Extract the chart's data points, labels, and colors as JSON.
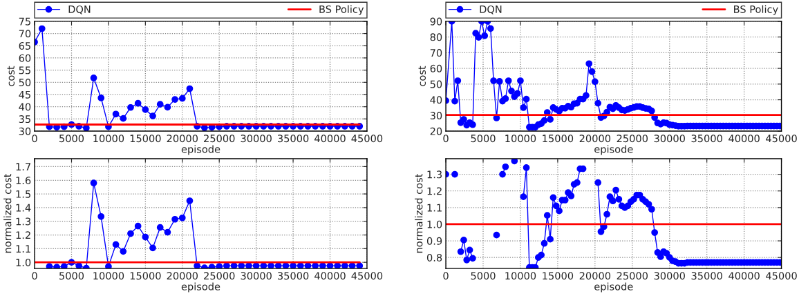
{
  "chart_data": [
    {
      "type": "line",
      "xlabel": "episode",
      "ylabel": "cost",
      "xlim": [
        0,
        45000
      ],
      "xticks": [
        0,
        5000,
        10000,
        15000,
        20000,
        25000,
        30000,
        35000,
        40000,
        45000
      ],
      "ylim": [
        30,
        75
      ],
      "yticks": [
        30,
        35,
        40,
        45,
        50,
        55,
        60,
        65,
        70,
        75
      ],
      "grid": true,
      "legend": "top",
      "series": [
        {
          "name": "DQN",
          "color": "#0000ff",
          "marker": "circle",
          "line_style": "solid",
          "x": [
            0,
            1000,
            2000,
            3000,
            4000,
            5000,
            6000,
            7000,
            8000,
            9000,
            10000,
            11000,
            12000,
            13000,
            14000,
            15000,
            16000,
            17000,
            18000,
            19000,
            20000,
            21000,
            22000,
            23000,
            24000,
            25000,
            26000,
            27000,
            28000,
            29000,
            30000,
            31000,
            32000,
            33000,
            34000,
            35000,
            36000,
            37000,
            38000,
            39000,
            40000,
            41000,
            42000,
            43000,
            44000
          ],
          "values": [
            66.5,
            72.0,
            31.8,
            31.6,
            31.8,
            32.7,
            32.0,
            31.3,
            51.8,
            43.6,
            31.8,
            37.0,
            35.2,
            39.7,
            41.4,
            38.8,
            36.2,
            41.0,
            39.8,
            43.0,
            43.4,
            47.4,
            32.0,
            31.4,
            31.6,
            31.8,
            32.0,
            32.0,
            32.0,
            32.0,
            32.0,
            32.0,
            32.0,
            32.0,
            32.0,
            32.0,
            32.0,
            32.0,
            32.0,
            32.0,
            32.0,
            32.0,
            32.0,
            32.0,
            32.0
          ]
        },
        {
          "name": "BS Policy",
          "color": "#ff0000",
          "marker": "none",
          "line_style": "solid",
          "x": [
            0,
            44000
          ],
          "values": [
            32.7,
            32.7
          ]
        }
      ]
    },
    {
      "type": "line",
      "xlabel": "episode",
      "ylabel": "cost",
      "xlim": [
        0,
        45000
      ],
      "xticks": [
        0,
        5000,
        10000,
        15000,
        20000,
        25000,
        30000,
        35000,
        40000,
        45000
      ],
      "ylim": [
        20,
        90
      ],
      "yticks": [
        20,
        30,
        40,
        50,
        60,
        70,
        80,
        90
      ],
      "grid": true,
      "legend": "top",
      "series": [
        {
          "name": "DQN",
          "color": "#0000ff",
          "marker": "circle",
          "line_style": "solid",
          "x": [
            0,
            800,
            1200,
            1600,
            2000,
            2400,
            2800,
            3200,
            3600,
            4000,
            4400,
            4800,
            5200,
            5600,
            6000,
            6400,
            6800,
            7200,
            7600,
            8000,
            8400,
            8800,
            9200,
            9600,
            10000,
            10400,
            10800,
            11200,
            11600,
            12000,
            12400,
            12800,
            13200,
            13600,
            14000,
            14400,
            14800,
            15200,
            15600,
            16000,
            16400,
            16800,
            17200,
            17600,
            18000,
            18400,
            18800,
            19200,
            19600,
            20000,
            20400,
            20800,
            21200,
            21600,
            22000,
            22400,
            22800,
            23200,
            23600,
            24000,
            24400,
            24800,
            25200,
            25600,
            26000,
            26400,
            26800,
            27200,
            27600,
            28000,
            28400,
            28800,
            29200,
            29600,
            30000,
            30400,
            30800,
            31200,
            31600,
            32000,
            32400,
            32800,
            33200,
            33600,
            34000,
            34400,
            34800,
            35200,
            35600,
            36000,
            36400,
            36800,
            37200,
            37600,
            38000,
            38400,
            38800,
            39200,
            39600,
            40000,
            40400,
            40800,
            41200,
            41600,
            42000,
            42400,
            42800,
            43200,
            43600,
            44000,
            44400,
            44800
          ],
          "values": [
            39.4,
            90,
            39.1,
            52.1,
            25.4,
            27.5,
            23.8,
            25.4,
            24.1,
            82.4,
            79.8,
            90,
            80.8,
            90,
            85.4,
            52.1,
            28.4,
            51.7,
            39.1,
            40.7,
            52.1,
            45.6,
            42,
            44,
            52.1,
            35,
            40.4,
            22.5,
            22.5,
            22.5,
            24.1,
            24.8,
            26.8,
            31.9,
            27.5,
            35,
            33.8,
            32.7,
            34.6,
            34.6,
            35.9,
            35.3,
            37.5,
            37.8,
            40.4,
            40.4,
            42.7,
            63,
            57.9,
            51.5,
            37.8,
            28.7,
            29.7,
            32.1,
            35.3,
            34.3,
            36.4,
            35,
            33.5,
            33.2,
            33.8,
            34.6,
            35.1,
            35.7,
            35.7,
            35,
            34.5,
            34.2,
            32.9,
            28.7,
            25.2,
            24.5,
            25.4,
            25.1,
            24.1,
            23.8,
            23.5,
            23.2,
            23.2,
            23.2,
            23.3,
            23.3,
            23.3,
            23.3,
            23.3,
            23.3,
            23.3,
            23.3,
            23.3,
            23.3,
            23.3,
            23.3,
            23.3,
            23.3,
            23.3,
            23.3,
            23.3,
            23.3,
            23.3,
            23.3,
            23.3,
            23.3,
            23.3,
            23.3,
            23.3,
            23.3,
            23.3,
            23.3,
            23.3,
            23.3,
            23.3,
            23.3
          ]
        },
        {
          "name": "BS Policy",
          "color": "#ff0000",
          "marker": "none",
          "line_style": "solid",
          "x": [
            0,
            45000
          ],
          "values": [
            30.3,
            30.3
          ]
        }
      ]
    },
    {
      "type": "line",
      "xlabel": "episode",
      "ylabel": "normalized cost",
      "xlim": [
        0,
        45000
      ],
      "xticks": [
        0,
        5000,
        10000,
        15000,
        20000,
        25000,
        30000,
        35000,
        40000,
        45000
      ],
      "ylim": [
        0.955,
        1.758
      ],
      "yticks": [
        {
          "value": 1.0,
          "label": "1.0"
        },
        1.1,
        1.2,
        1.3,
        1.4,
        1.5,
        1.6,
        1.7
      ],
      "grid": true,
      "series": [
        {
          "color": "#0000ff",
          "marker": "circle",
          "line_style": "solid",
          "x": [
            2000,
            3000,
            4000,
            5000,
            6000,
            7000,
            8000,
            9000,
            10000,
            11000,
            12000,
            13000,
            14000,
            15000,
            16000,
            17000,
            18000,
            19000,
            20000,
            21000,
            22000,
            23000,
            24000,
            25000,
            26000,
            27000,
            28000,
            29000,
            30000,
            31000,
            32000,
            33000,
            34000,
            35000,
            36000,
            37000,
            38000,
            39000,
            40000,
            41000,
            42000,
            43000,
            44000
          ],
          "values": [
            0.97,
            0.965,
            0.97,
            1.0,
            0.975,
            0.957,
            1.58,
            1.335,
            0.97,
            1.13,
            1.08,
            1.21,
            1.265,
            1.185,
            1.105,
            1.255,
            1.22,
            1.315,
            1.325,
            1.45,
            0.975,
            0.96,
            0.965,
            0.97,
            0.975,
            0.975,
            0.975,
            0.975,
            0.975,
            0.975,
            0.975,
            0.975,
            0.975,
            0.975,
            0.975,
            0.975,
            0.975,
            0.975,
            0.975,
            0.975,
            0.975,
            0.975,
            0.975
          ]
        },
        {
          "color": "#ff0000",
          "marker": "none",
          "line_style": "solid",
          "x": [
            0,
            44000
          ],
          "values": [
            1.0,
            1.0
          ]
        }
      ]
    },
    {
      "type": "line",
      "xlabel": "episode",
      "ylabel": "normalized cost",
      "xlim": [
        0,
        45000
      ],
      "xticks": [
        0,
        5000,
        10000,
        15000,
        20000,
        25000,
        30000,
        35000,
        40000,
        45000
      ],
      "ylim": [
        0.734,
        1.394
      ],
      "yticks": [
        0.8,
        0.9,
        {
          "value": 1.0,
          "label": "1.0"
        },
        1.1,
        1.2,
        1.3
      ],
      "grid": true,
      "series": [
        {
          "color": "#0000ff",
          "marker": "circle",
          "line_style": "solid",
          "x": [
            0,
            800,
            1200,
            1600,
            2000,
            2400,
            2800,
            3200,
            3600,
            4000,
            4400,
            4800,
            5200,
            5600,
            6000,
            6400,
            6800,
            7200,
            7600,
            8000,
            8400,
            8800,
            9200,
            9600,
            10000,
            10400,
            10800,
            11200,
            11600,
            12000,
            12400,
            12800,
            13200,
            13600,
            14000,
            14400,
            14800,
            15200,
            15600,
            16000,
            16400,
            16800,
            17200,
            17600,
            18000,
            18400,
            18800,
            19200,
            19600,
            20000,
            20400,
            20800,
            21200,
            21600,
            22000,
            22400,
            22800,
            23200,
            23600,
            24000,
            24400,
            24800,
            25200,
            25600,
            26000,
            26400,
            26800,
            27200,
            27600,
            28000,
            28400,
            28800,
            29200,
            29600,
            30000,
            30400,
            30800,
            31200,
            31600,
            32000,
            32400,
            32800,
            33200,
            33600,
            34000,
            34400,
            34800,
            35200,
            35600,
            36000,
            36400,
            36800,
            37200,
            37600,
            38000,
            38400,
            38800,
            39200,
            39600,
            40000,
            40400,
            40800,
            41200,
            41600,
            42000,
            42400,
            42800,
            43200,
            43600,
            44000,
            44400,
            44800
          ],
          "values": [
            1.3,
            null,
            1.3,
            null,
            0.835,
            0.905,
            0.785,
            0.845,
            0.795,
            null,
            null,
            null,
            null,
            null,
            null,
            null,
            0.935,
            null,
            1.3,
            1.345,
            null,
            null,
            1.38,
            null,
            null,
            1.165,
            1.34,
            0.74,
            0.74,
            0.74,
            0.8,
            0.815,
            0.885,
            1.053,
            0.91,
            1.16,
            1.11,
            1.08,
            1.145,
            1.145,
            1.19,
            1.17,
            1.24,
            1.25,
            1.333,
            1.333,
            null,
            null,
            null,
            null,
            1.25,
            0.955,
            0.985,
            1.06,
            1.165,
            1.14,
            1.205,
            1.15,
            1.11,
            1.1,
            1.11,
            1.135,
            1.15,
            1.175,
            1.175,
            1.15,
            1.135,
            1.12,
            1.09,
            0.95,
            0.83,
            0.805,
            0.835,
            0.825,
            0.8,
            0.78,
            0.775,
            0.765,
            0.765,
            0.765,
            0.77,
            0.77,
            0.77,
            0.77,
            0.77,
            0.77,
            0.77,
            0.77,
            0.77,
            0.77,
            0.77,
            0.77,
            0.77,
            0.77,
            0.77,
            0.77,
            0.77,
            0.77,
            0.77,
            0.77,
            0.77,
            0.77,
            0.77,
            0.77,
            0.77,
            0.77,
            0.77,
            0.77,
            0.77,
            0.77,
            0.77,
            0.77
          ]
        },
        {
          "color": "#ff0000",
          "marker": "none",
          "line_style": "solid",
          "x": [
            0,
            45000
          ],
          "values": [
            1.0,
            1.0
          ]
        }
      ]
    }
  ]
}
